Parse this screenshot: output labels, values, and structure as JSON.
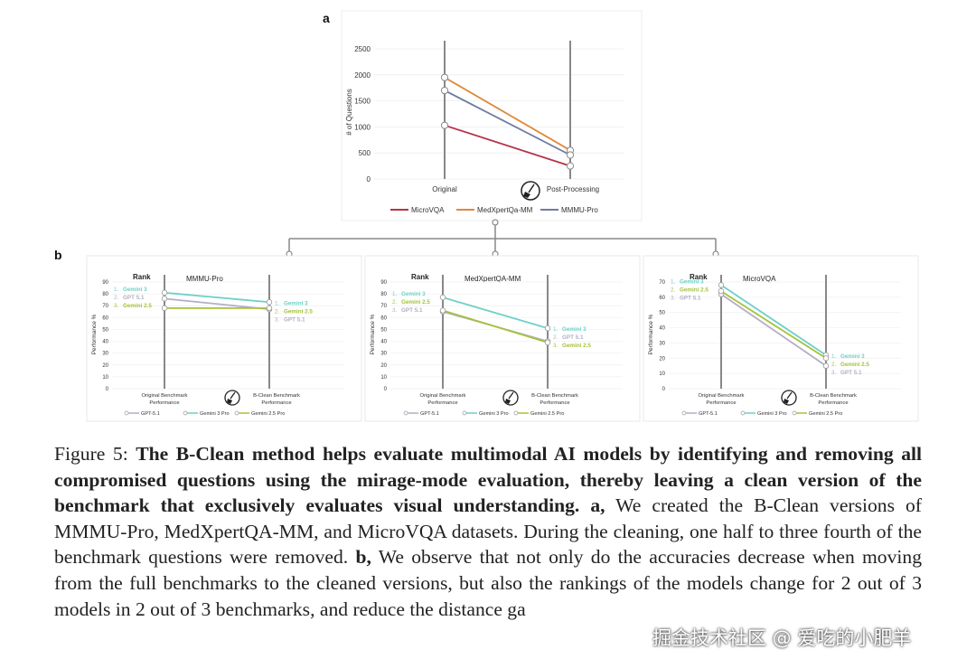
{
  "colors": {
    "microvqa": "#b5344a",
    "medxpert": "#e0883a",
    "mmmupro": "#6f7ba0",
    "gpt": "#b3aec6",
    "gemini3": "#6cd1c6",
    "gemini25": "#a4c23a",
    "axis": "#808080",
    "grid": "#dddddd"
  },
  "panel_a": {
    "letter": "a",
    "ylabel": "# of Questions",
    "yticks": [
      "0",
      "500",
      "1000",
      "1500",
      "2000",
      "2500"
    ],
    "xlabels": [
      "Original",
      "Post-Processing"
    ],
    "legend": [
      "MicroVQA",
      "MedXpertQa-MM",
      "MMMU-Pro"
    ]
  },
  "panel_b": {
    "letter": "b",
    "rank_label": "Rank",
    "ylabel": "Performance %",
    "yticks": [
      "0",
      "10",
      "20",
      "30",
      "40",
      "50",
      "60",
      "70",
      "80",
      "90"
    ],
    "x_left": [
      "Original Benchmark",
      "Performance"
    ],
    "x_right": [
      "B-Clean Benchmark",
      "Performance"
    ],
    "legend": [
      "GPT-5.1",
      "Gemini 3 Pro",
      "Gemini 2.5 Pro"
    ],
    "panels": [
      {
        "title": "MMMU-Pro",
        "rank_left": [
          {
            "n": "1.",
            "name": "Gemini 3",
            "key": "gemini3"
          },
          {
            "n": "2.",
            "name": "GPT 5.1",
            "key": "gpt"
          },
          {
            "n": "3.",
            "name": "Gemini 2.5",
            "key": "gemini25"
          }
        ],
        "rank_right": [
          {
            "n": "1.",
            "name": "Gemini 3",
            "key": "gemini3"
          },
          {
            "n": "2.",
            "name": "Gemini 2.5",
            "key": "gemini25"
          },
          {
            "n": "3.",
            "name": "GPT 5.1",
            "key": "gpt"
          }
        ]
      },
      {
        "title": "MedXpertQA-MM",
        "rank_left": [
          {
            "n": "1.",
            "name": "Gemini 3",
            "key": "gemini3"
          },
          {
            "n": "2.",
            "name": "Gemini 2.5",
            "key": "gemini25"
          },
          {
            "n": "3.",
            "name": "GPT 5.1",
            "key": "gpt"
          }
        ],
        "rank_right": [
          {
            "n": "1.",
            "name": "Gemini 3",
            "key": "gemini3"
          },
          {
            "n": "2.",
            "name": "GPT 5.1",
            "key": "gpt"
          },
          {
            "n": "3.",
            "name": "Gemini 2.5",
            "key": "gemini25"
          }
        ]
      },
      {
        "title": "MicroVQA",
        "rank_left": [
          {
            "n": "1.",
            "name": "Gemini 3",
            "key": "gemini3"
          },
          {
            "n": "2.",
            "name": "Gemini 2.5",
            "key": "gemini25"
          },
          {
            "n": "3.",
            "name": "GPT 5.1",
            "key": "gpt"
          }
        ],
        "rank_right": [
          {
            "n": "1.",
            "name": "Gemini 3",
            "key": "gemini3"
          },
          {
            "n": "2.",
            "name": "Gemini 2.5",
            "key": "gemini25"
          },
          {
            "n": "3.",
            "name": "GPT 5.1",
            "key": "gpt"
          }
        ]
      }
    ]
  },
  "chart_data": [
    {
      "type": "line",
      "title": "a",
      "xlabel": "",
      "ylabel": "# of Questions",
      "categories": [
        "Original",
        "Post-Processing"
      ],
      "ylim": [
        0,
        2500
      ],
      "series": [
        {
          "name": "MicroVQA",
          "color_key": "microvqa",
          "values": [
            1030,
            250
          ]
        },
        {
          "name": "MedXpertQa-MM",
          "color_key": "medxpert",
          "values": [
            1950,
            550
          ]
        },
        {
          "name": "MMMU-Pro",
          "color_key": "mmmupro",
          "values": [
            1700,
            460
          ]
        }
      ]
    },
    {
      "type": "line",
      "title": "MMMU-Pro",
      "ylabel": "Performance %",
      "categories": [
        "Original Benchmark Performance",
        "B-Clean Benchmark Performance"
      ],
      "ylim": [
        0,
        90
      ],
      "series": [
        {
          "name": "GPT-5.1",
          "color_key": "gpt",
          "values": [
            76,
            67
          ]
        },
        {
          "name": "Gemini 3 Pro",
          "color_key": "gemini3",
          "values": [
            81,
            73
          ]
        },
        {
          "name": "Gemini 2.5 Pro",
          "color_key": "gemini25",
          "values": [
            68,
            68
          ]
        }
      ]
    },
    {
      "type": "line",
      "title": "MedXpertQA-MM",
      "ylabel": "Performance %",
      "categories": [
        "Original Benchmark Performance",
        "B-Clean Benchmark Performance"
      ],
      "ylim": [
        0,
        90
      ],
      "series": [
        {
          "name": "GPT-5.1",
          "color_key": "gpt",
          "values": [
            65,
            40
          ]
        },
        {
          "name": "Gemini 3 Pro",
          "color_key": "gemini3",
          "values": [
            77,
            51
          ]
        },
        {
          "name": "Gemini 2.5 Pro",
          "color_key": "gemini25",
          "values": [
            66,
            39
          ]
        }
      ]
    },
    {
      "type": "line",
      "title": "MicroVQA",
      "ylabel": "Performance %",
      "categories": [
        "Original Benchmark Performance",
        "B-Clean Benchmark Performance"
      ],
      "ylim": [
        0,
        70
      ],
      "series": [
        {
          "name": "GPT-5.1",
          "color_key": "gpt",
          "values": [
            62,
            15
          ]
        },
        {
          "name": "Gemini 3 Pro",
          "color_key": "gemini3",
          "values": [
            68,
            22
          ]
        },
        {
          "name": "Gemini 2.5 Pro",
          "color_key": "gemini25",
          "values": [
            64,
            20
          ]
        }
      ]
    }
  ],
  "caption": {
    "prefix": "Figure 5: ",
    "bold1": "The B-Clean method helps evaluate multimodal AI models by identifying and removing all compromised questions using the mirage-mode evaluation, thereby leaving a clean version of the benchmark that exclusively evaluates visual understanding.",
    "a_label": " a,",
    "text_a": " We created the B-Clean versions of MMMU-Pro, MedXpertQA-MM, and MicroVQA datasets. During the cleaning, one half to three fourth of the benchmark questions were removed. ",
    "b_label": "b,",
    "text_b": " We observe that not only do the accuracies decrease when moving from the full benchmarks to the cleaned versions, but also the rankings of the models change for 2 out of 3 models in 2 out of 3 benchmarks, and reduce the distance ga"
  },
  "watermark": "掘金技术社区 @ 爱吃的小肥羊"
}
